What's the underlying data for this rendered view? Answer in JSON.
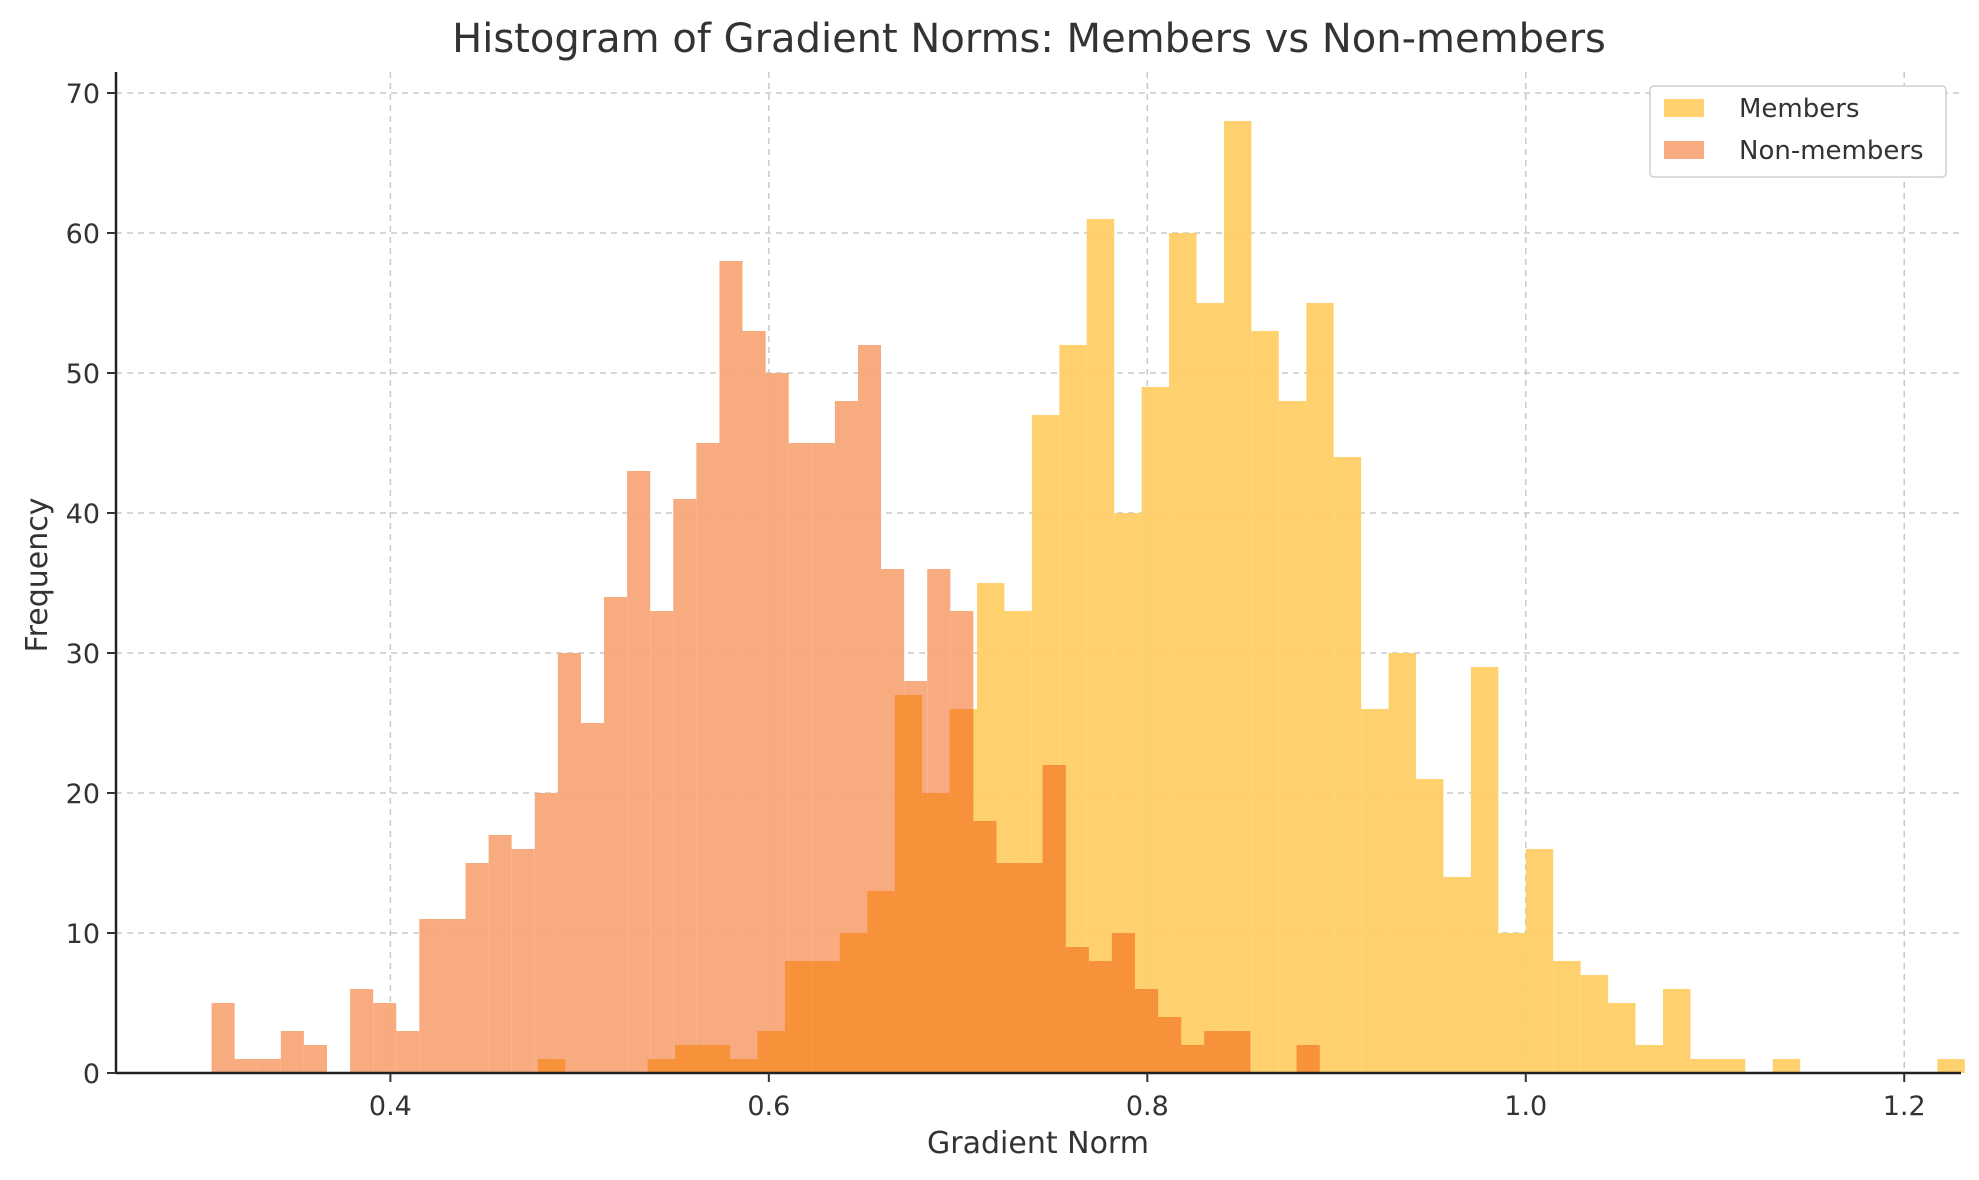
{
  "chart_data": {
    "type": "bar",
    "title": "Histogram of Gradient Norms: Members vs Non-members",
    "xlabel": "Gradient Norm",
    "ylabel": "Frequency",
    "xlim": [
      0.255,
      1.23
    ],
    "ylim": [
      0,
      71.5
    ],
    "xticks": [
      0.4,
      0.6,
      0.8,
      1.0,
      1.2
    ],
    "xtick_labels": [
      "0.4",
      "0.6",
      "0.8",
      "1.0",
      "1.2"
    ],
    "yticks": [
      0,
      10,
      20,
      30,
      40,
      50,
      60,
      70
    ],
    "ytick_labels": [
      "0",
      "10",
      "20",
      "30",
      "40",
      "50",
      "60",
      "70"
    ],
    "grid": true,
    "legend_position": "top-right",
    "series": [
      {
        "name": "Members",
        "color": "#ffcf66",
        "opacity": 0.95,
        "bin_start": 0.478,
        "bin_width": 0.0145,
        "counts": [
          1,
          0,
          0,
          0,
          1,
          2,
          2,
          1,
          3,
          8,
          8,
          10,
          13,
          27,
          20,
          26,
          35,
          33,
          47,
          52,
          61,
          40,
          49,
          60,
          55,
          68,
          53,
          48,
          55,
          44,
          26,
          30,
          21,
          14,
          29,
          10,
          16,
          8,
          7,
          5,
          2,
          6,
          1,
          1,
          0,
          1,
          0,
          0,
          0,
          0,
          0,
          1
        ]
      },
      {
        "name": "Non-members",
        "color": "#f7a678",
        "opacity": 0.95,
        "bin_start": 0.3055,
        "bin_width": 0.0122,
        "counts": [
          5,
          1,
          1,
          3,
          2,
          0,
          6,
          5,
          3,
          11,
          11,
          15,
          17,
          16,
          20,
          30,
          25,
          34,
          43,
          33,
          41,
          45,
          58,
          53,
          50,
          45,
          45,
          48,
          52,
          36,
          28,
          36,
          33,
          18,
          15,
          15,
          22,
          9,
          8,
          10,
          6,
          4,
          2,
          3,
          3,
          0,
          0,
          2
        ]
      }
    ],
    "overlap_color": "#f7923a"
  }
}
